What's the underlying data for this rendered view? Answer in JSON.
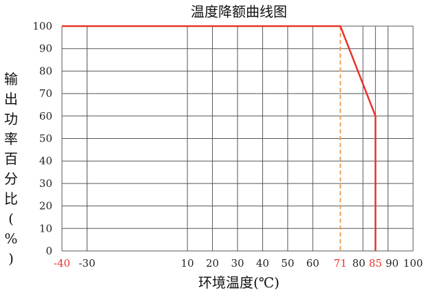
{
  "chart_data": {
    "type": "line",
    "title": "温度降额曲线图",
    "xlabel": "环境温度(℃)",
    "ylabel": "输出功率百分比(%)",
    "xlim": [
      -40,
      100
    ],
    "ylim": [
      0,
      100
    ],
    "x_ticks": [
      {
        "value": -40,
        "label": "-40",
        "highlight": true
      },
      {
        "value": -30,
        "label": "-30",
        "highlight": false
      },
      {
        "value": 10,
        "label": "10",
        "highlight": false
      },
      {
        "value": 20,
        "label": "20",
        "highlight": false
      },
      {
        "value": 30,
        "label": "30",
        "highlight": false
      },
      {
        "value": 40,
        "label": "40",
        "highlight": false
      },
      {
        "value": 50,
        "label": "50",
        "highlight": false
      },
      {
        "value": 60,
        "label": "60",
        "highlight": false
      },
      {
        "value": 71,
        "label": "71",
        "highlight": true
      },
      {
        "value": 80,
        "label": "80",
        "highlight": false
      },
      {
        "value": 85,
        "label": "85",
        "highlight": true
      },
      {
        "value": 90,
        "label": "90",
        "highlight": false
      },
      {
        "value": 100,
        "label": "100",
        "highlight": false
      }
    ],
    "y_ticks": [
      0,
      10,
      20,
      30,
      40,
      50,
      60,
      70,
      80,
      90,
      100
    ],
    "grid": true,
    "series": [
      {
        "color": "#e8322a",
        "x": [
          -40,
          71,
          85,
          85
        ],
        "y": [
          100,
          100,
          60,
          0
        ]
      }
    ],
    "reference_lines": [
      {
        "x": 71,
        "style": "dashed",
        "color": "#f0a050"
      }
    ],
    "highlight_color": "#e8322a"
  }
}
